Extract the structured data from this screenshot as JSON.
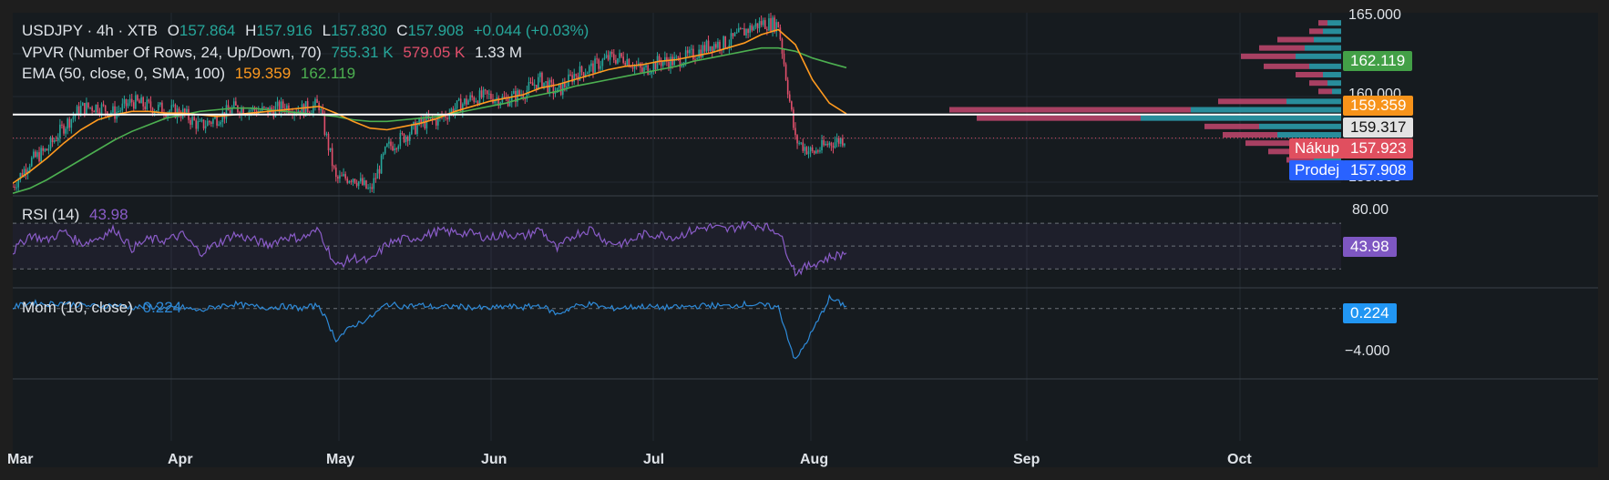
{
  "price_legend": {
    "symbol": "USDJPY · 4h · XTB",
    "o_label": "O",
    "o_val": "157.864",
    "h_label": "H",
    "h_val": "157.916",
    "l_label": "L",
    "l_val": "157.830",
    "c_label": "C",
    "c_val": "157.908",
    "change": "+0.044 (+0.03%)"
  },
  "vpvr_legend": {
    "name": "VPVR (Number Of Rows, 24, Up/Down, 70)",
    "up": "755.31 K",
    "down": "579.05 K",
    "total": "1.33 M"
  },
  "ema_legend": {
    "name": "EMA (50, close, 0, SMA, 100)",
    "v1": "159.359",
    "v2": "162.119"
  },
  "rsi_legend": {
    "name": "RSI (14)",
    "value": "43.98"
  },
  "mom_legend": {
    "name": "Mom (10, close)",
    "value": "0.224"
  },
  "price_axis": [
    "165.000",
    "160.000",
    "155.000"
  ],
  "rsi_axis": [
    "80.00"
  ],
  "mom_axis": [
    "−4.000"
  ],
  "badges": {
    "ema100": "162.119",
    "ema50": "159.359",
    "line": "159.317",
    "buy_label": "Nákup",
    "buy_val": "157.923",
    "sell_label": "Prodej",
    "sell_val": "157.908",
    "rsi": "43.98",
    "mom": "0.224"
  },
  "months": [
    "Mar",
    "Apr",
    "May",
    "Jun",
    "Jul",
    "Aug",
    "Sep",
    "Oct"
  ],
  "colors": {
    "up": "#26a69a",
    "down": "#e04f6b",
    "ema50": "#ff9a1f",
    "ema100": "#4caf50",
    "rsi": "#8a5cc8",
    "mom": "#2e8ad8"
  },
  "chart_data": [
    {
      "type": "line",
      "title": "USDJPY · 4h · XTB",
      "ylim": [
        154.5,
        165.3
      ],
      "x_months": [
        "Mar",
        "Apr",
        "May",
        "Jun",
        "Jul",
        "Aug"
      ],
      "price_close": [
        155.0,
        156.5,
        157.2,
        158.6,
        159.7,
        159.8,
        159.4,
        160.1,
        159.8,
        159.6,
        159.4,
        158.6,
        159.1,
        159.7,
        159.6,
        159.5,
        159.8,
        159.6,
        159.9,
        155.4,
        155.6,
        154.7,
        157.3,
        158.0,
        158.8,
        159.0,
        159.7,
        160.3,
        160.4,
        160.2,
        160.6,
        161.4,
        160.6,
        161.7,
        162.1,
        162.7,
        162.7,
        161.9,
        162.5,
        162.5,
        162.9,
        163.5,
        163.6,
        164.3,
        164.8,
        164.7,
        157.8,
        157.0,
        157.6,
        157.9
      ],
      "ema50": [
        155.2,
        155.9,
        156.7,
        157.6,
        158.4,
        159.0,
        159.3,
        159.5,
        159.5,
        159.4,
        159.4,
        159.3,
        159.2,
        159.3,
        159.4,
        159.5,
        159.6,
        159.7,
        159.8,
        159.4,
        158.9,
        158.5,
        158.4,
        158.6,
        158.8,
        159.1,
        159.5,
        159.8,
        160.1,
        160.3,
        160.5,
        160.9,
        161.1,
        161.4,
        161.7,
        162.0,
        162.2,
        162.3,
        162.5,
        162.6,
        162.8,
        163.0,
        163.3,
        163.6,
        164.1,
        164.4,
        163.5,
        161.4,
        160.0,
        159.36
      ],
      "ema100": [
        154.6,
        154.9,
        155.4,
        156.0,
        156.6,
        157.2,
        157.8,
        158.3,
        158.7,
        159.1,
        159.3,
        159.5,
        159.6,
        159.7,
        159.7,
        159.6,
        159.5,
        159.4,
        159.3,
        159.2,
        159.0,
        158.9,
        158.9,
        159.0,
        159.1,
        159.2,
        159.4,
        159.6,
        159.8,
        160.0,
        160.3,
        160.5,
        160.7,
        161.0,
        161.2,
        161.4,
        161.6,
        161.8,
        162.0,
        162.2,
        162.5,
        162.7,
        162.9,
        163.1,
        163.3,
        163.3,
        163.1,
        162.7,
        162.4,
        162.12
      ],
      "horizontal_line": 159.317,
      "vpvr_bars": [
        {
          "price": 164.8,
          "up": 15,
          "down": 10
        },
        {
          "price": 164.3,
          "up": 20,
          "down": 15
        },
        {
          "price": 163.8,
          "up": 30,
          "down": 40
        },
        {
          "price": 163.3,
          "up": 40,
          "down": 50
        },
        {
          "price": 162.8,
          "up": 50,
          "down": 60
        },
        {
          "price": 162.2,
          "up": 35,
          "down": 50
        },
        {
          "price": 161.7,
          "up": 20,
          "down": 30
        },
        {
          "price": 161.2,
          "up": 15,
          "down": 20
        },
        {
          "price": 160.7,
          "up": 10,
          "down": 15
        },
        {
          "price": 160.1,
          "up": 60,
          "down": 75
        },
        {
          "price": 159.6,
          "up": 165,
          "down": 265
        },
        {
          "price": 159.1,
          "up": 220,
          "down": 180
        },
        {
          "price": 158.6,
          "up": 90,
          "down": 60
        },
        {
          "price": 158.1,
          "up": 70,
          "down": 60
        },
        {
          "price": 157.6,
          "up": 45,
          "down": 60
        },
        {
          "price": 157.1,
          "up": 50,
          "down": 30
        },
        {
          "price": 156.6,
          "up": 30,
          "down": 30
        },
        {
          "price": 156.1,
          "up": 15,
          "down": 25
        },
        {
          "price": 155.6,
          "up": 10,
          "down": 20
        }
      ]
    },
    {
      "type": "line",
      "title": "RSI (14)",
      "ylim": [
        15,
        90
      ],
      "upper": 70,
      "middle": 50,
      "lower": 30,
      "values": [
        45,
        60,
        55,
        63,
        52,
        57,
        65,
        48,
        56,
        55,
        60,
        44,
        52,
        60,
        56,
        51,
        58,
        57,
        64,
        32,
        40,
        36,
        52,
        56,
        58,
        63,
        62,
        61,
        57,
        61,
        58,
        65,
        47,
        60,
        65,
        53,
        52,
        60,
        60,
        58,
        64,
        67,
        64,
        69,
        68,
        63,
        27,
        34,
        40,
        43.98
      ]
    },
    {
      "type": "line",
      "title": "Mom (10, close)",
      "ylim": [
        -6,
        1.5
      ],
      "zero": 0,
      "values": [
        0.1,
        0.5,
        0.4,
        0.5,
        0.3,
        0.2,
        0.3,
        0.1,
        0.2,
        0.0,
        0.1,
        -0.2,
        0.2,
        0.4,
        0.2,
        0.1,
        0.2,
        0.0,
        0.3,
        -2.7,
        -1.5,
        -0.8,
        0.4,
        0.2,
        0.3,
        0.1,
        0.2,
        0.1,
        0.0,
        0.2,
        0.1,
        0.3,
        -0.5,
        0.2,
        0.4,
        0.0,
        0.1,
        0.2,
        0.1,
        0.1,
        0.2,
        0.3,
        0.2,
        0.4,
        0.3,
        0.1,
        -4.6,
        -2.0,
        0.9,
        0.224
      ]
    }
  ]
}
